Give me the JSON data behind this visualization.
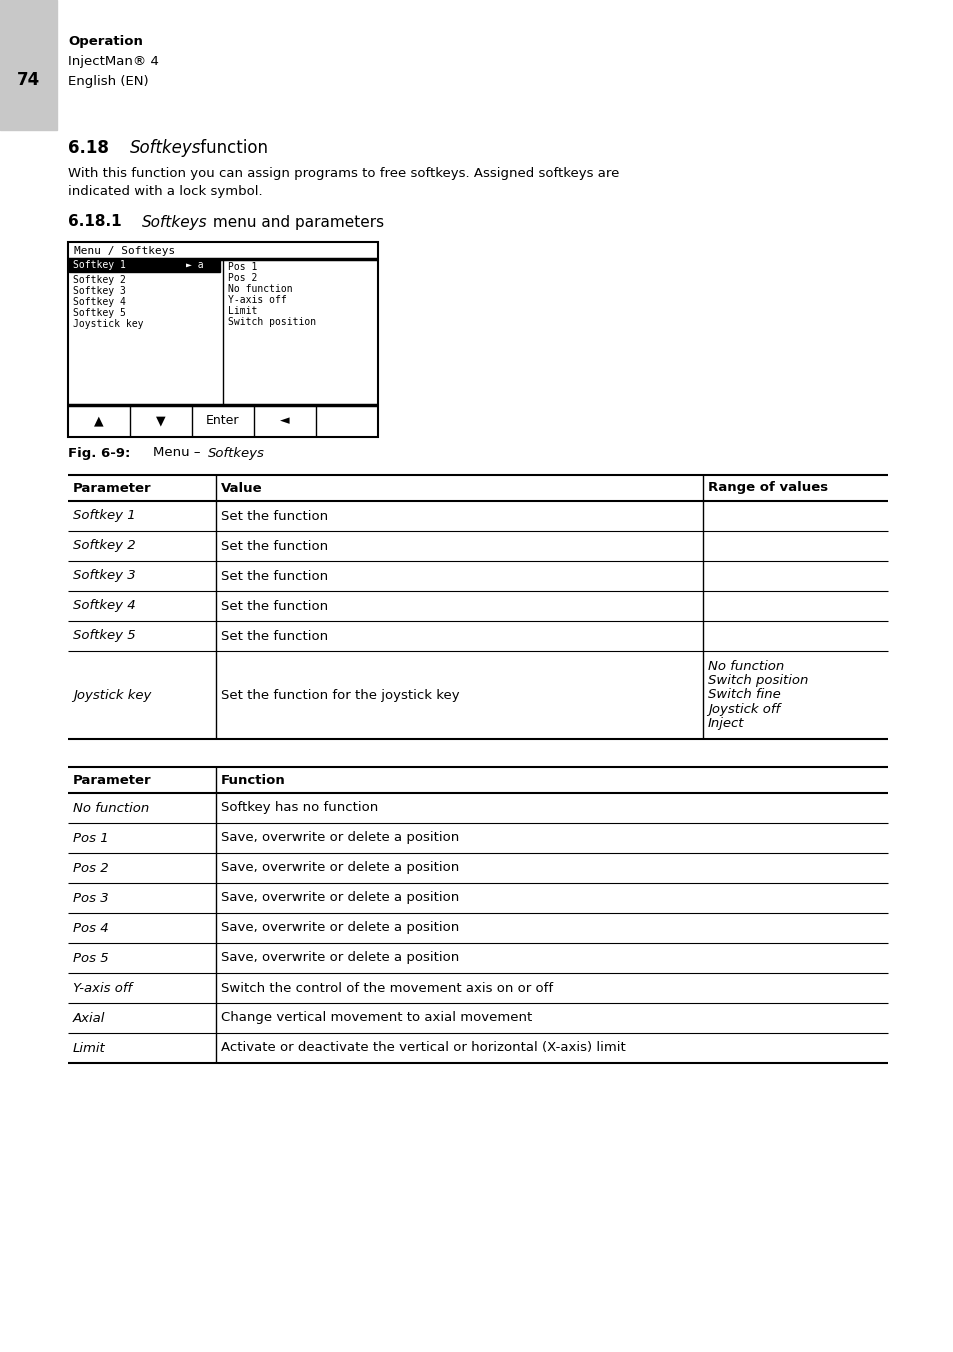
{
  "page_num": "74",
  "header_label1": "Operation",
  "header_label2": "InjectMan® 4",
  "header_label3": "English (EN)",
  "section_num": "6.18",
  "section_italic": "Softkeys",
  "section_rest": " function",
  "body_line1": "With this function you can assign programs to free softkeys. Assigned softkeys are",
  "body_line2": "indicated with a lock symbol.",
  "sub_num": "6.18.1",
  "sub_italic": "Softkeys",
  "sub_rest": " menu and parameters",
  "fig_label": "Fig. 6-9:",
  "fig_dash": "Menu – ",
  "fig_italic": "Softkeys",
  "screen_title": "Menu / Softkeys",
  "screen_left": [
    "Softkey 1",
    "Softkey 2",
    "Softkey 3",
    "Softkey 4",
    "Softkey 5",
    "Joystick key"
  ],
  "screen_right": [
    "Pos 1",
    "Pos 2",
    "No function",
    "Y-axis off",
    "Limit",
    "Switch position"
  ],
  "screen_btns": [
    "▲",
    "▼",
    "Enter",
    "◄",
    ""
  ],
  "t1_headers": [
    "Parameter",
    "Value",
    "Range of values"
  ],
  "t1_rows": [
    [
      "Softkey 1",
      "Set the function",
      ""
    ],
    [
      "Softkey 2",
      "Set the function",
      ""
    ],
    [
      "Softkey 3",
      "Set the function",
      ""
    ],
    [
      "Softkey 4",
      "Set the function",
      ""
    ],
    [
      "Softkey 5",
      "Set the function",
      ""
    ],
    [
      "Joystick key",
      "Set the function for the joystick key",
      "No function\nSwitch position\nSwitch fine\nJoystick off\nInject"
    ]
  ],
  "t2_headers": [
    "Parameter",
    "Function"
  ],
  "t2_rows": [
    [
      "No function",
      "Softkey has no function"
    ],
    [
      "Pos 1",
      "Save, overwrite or delete a position"
    ],
    [
      "Pos 2",
      "Save, overwrite or delete a position"
    ],
    [
      "Pos 3",
      "Save, overwrite or delete a position"
    ],
    [
      "Pos 4",
      "Save, overwrite or delete a position"
    ],
    [
      "Pos 5",
      "Save, overwrite or delete a position"
    ],
    [
      "Y-axis off",
      "Switch the control of the movement axis on or off"
    ],
    [
      "Axial",
      "Change vertical movement to axial movement"
    ],
    [
      "Limit",
      "Activate or deactivate the vertical or horizontal (X-axis) limit"
    ]
  ],
  "gray_bar_color": "#c8c8c8",
  "white": "#ffffff",
  "black": "#000000"
}
